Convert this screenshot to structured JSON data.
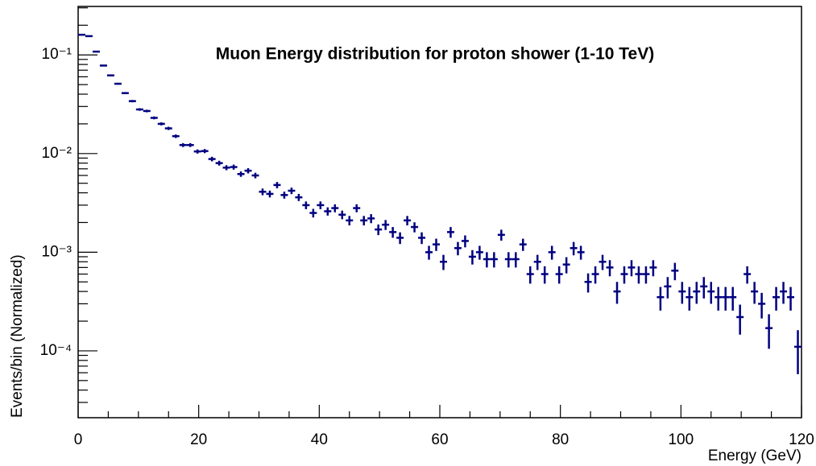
{
  "chart_data": {
    "type": "histogram",
    "title": "Muon Energy distribution for proton shower (1-10 TeV)",
    "x_label": "Energy (GeV)",
    "y_label": "Events/bin (Normalized)",
    "color": "#000080",
    "log_y": true,
    "bins": [
      0,
      1.2,
      2.4,
      3.6,
      4.8,
      6,
      7.2,
      8.4,
      9.6,
      10.8,
      12,
      13.2,
      14.4,
      15.6,
      16.8,
      18,
      19.2,
      20.4,
      21.6,
      22.8,
      24,
      25.2,
      26.4,
      27.6,
      28.8,
      30,
      31.2,
      32.4,
      33.6,
      34.8,
      36,
      37.2,
      38.4,
      39.6,
      40.8,
      42,
      43.2,
      44.4,
      45.6,
      46.8,
      48,
      49.2,
      50.4,
      51.6,
      52.8,
      54,
      55.2,
      56.4,
      57.6,
      58.8,
      60,
      61.2,
      62.4,
      63.6,
      64.8,
      66,
      67.2,
      68.4,
      69.6,
      70.8,
      72,
      73.2,
      74.4,
      75.6,
      76.8,
      78,
      79.2,
      80.4,
      81.6,
      82.8,
      84,
      85.2,
      86.4,
      87.6,
      88.8,
      90,
      91.2,
      92.4,
      93.6,
      94.8,
      96,
      97.2,
      98.4,
      99.6,
      100.8,
      102,
      103.2,
      104.4,
      105.6,
      106.8,
      108,
      109.2,
      110.4,
      111.6,
      112.8,
      114,
      115.2,
      116.4,
      117.6,
      118.8,
      120
    ],
    "values": [
      0.16,
      0.155,
      0.108,
      0.078,
      0.062,
      0.051,
      0.041,
      0.034,
      0.028,
      0.027,
      0.023,
      0.02,
      0.018,
      0.015,
      0.0122,
      0.0122,
      0.0105,
      0.0106,
      0.0088,
      0.008,
      0.0072,
      0.0073,
      0.0062,
      0.0067,
      0.006,
      0.0041,
      0.0039,
      0.0048,
      0.0038,
      0.0042,
      0.0036,
      0.003,
      0.0025,
      0.003,
      0.0026,
      0.0028,
      0.0024,
      0.0021,
      0.0028,
      0.0021,
      0.0022,
      0.0017,
      0.0019,
      0.0016,
      0.0014,
      0.0021,
      0.0018,
      0.0014,
      0.001,
      0.0012,
      0.0008,
      0.0016,
      0.0011,
      0.0013,
      0.0009,
      0.001,
      0.00085,
      0.00085,
      0.0015,
      0.00085,
      0.00085,
      0.0012,
      0.0006,
      0.0008,
      0.0006,
      0.001,
      0.0006,
      0.00075,
      0.0011,
      0.001,
      0.0005,
      0.0006,
      0.0008,
      0.0007,
      0.0004,
      0.0006,
      0.0007,
      0.0006,
      0.0006,
      0.0007,
      0.00035,
      0.00045,
      0.00065,
      0.0004,
      0.00035,
      0.0004,
      0.00045,
      0.0004,
      0.00035,
      0.00035,
      0.00035,
      0.00022,
      0.0006,
      0.0004,
      0.0003,
      0.00017,
      0.00035,
      0.0004,
      0.00035,
      0.00011
    ],
    "errors": [
      0.002,
      0.00197,
      0.00164,
      0.0014,
      0.00125,
      0.00113,
      0.001,
      0.00092,
      0.00084,
      0.00082,
      0.00076,
      0.00071,
      0.00067,
      0.00061,
      0.00055,
      0.00055,
      0.00051,
      0.00051,
      0.00047,
      0.00045,
      0.00042,
      0.00043,
      0.00039,
      0.00041,
      0.00039,
      0.00032,
      0.00031,
      0.00035,
      0.00031,
      0.00032,
      0.0003,
      0.00027,
      0.00025,
      0.00027,
      0.00025,
      0.00026,
      0.00024,
      0.00023,
      0.00026,
      0.00023,
      0.00023,
      0.00021,
      0.00022,
      0.0002,
      0.00019,
      0.00023,
      0.00021,
      0.00019,
      0.00016,
      0.00017,
      0.00014,
      0.0002,
      0.00017,
      0.00018,
      0.00015,
      0.00016,
      0.00015,
      0.00015,
      0.00019,
      0.00015,
      0.00015,
      0.00017,
      0.00012,
      0.00014,
      0.00012,
      0.00016,
      0.00012,
      0.00014,
      0.00017,
      0.00016,
      0.00011,
      0.00012,
      0.00014,
      0.00013,
      0.0001,
      0.00012,
      0.00013,
      0.00012,
      0.00012,
      0.00013,
      9.4e-05,
      0.00011,
      0.00013,
      0.0001,
      9.4e-05,
      0.0001,
      0.00011,
      0.0001,
      9.4e-05,
      9.4e-05,
      9.4e-05,
      7.4e-05,
      0.00012,
      0.0001,
      8.7e-05,
      6.5e-05,
      9.4e-05,
      0.0001,
      9.4e-05,
      5.2e-05
    ],
    "xlim": [
      0,
      120
    ],
    "xticks": [
      0,
      20,
      40,
      60,
      80,
      100,
      120
    ],
    "ylim": [
      2.1e-05,
      0.31
    ],
    "yticks": [
      {
        "value": 0.0001,
        "label": "10⁻⁴"
      },
      {
        "value": 0.001,
        "label": "10⁻³"
      },
      {
        "value": 0.01,
        "label": "10⁻²"
      },
      {
        "value": 0.1,
        "label": "10⁻¹"
      }
    ]
  }
}
